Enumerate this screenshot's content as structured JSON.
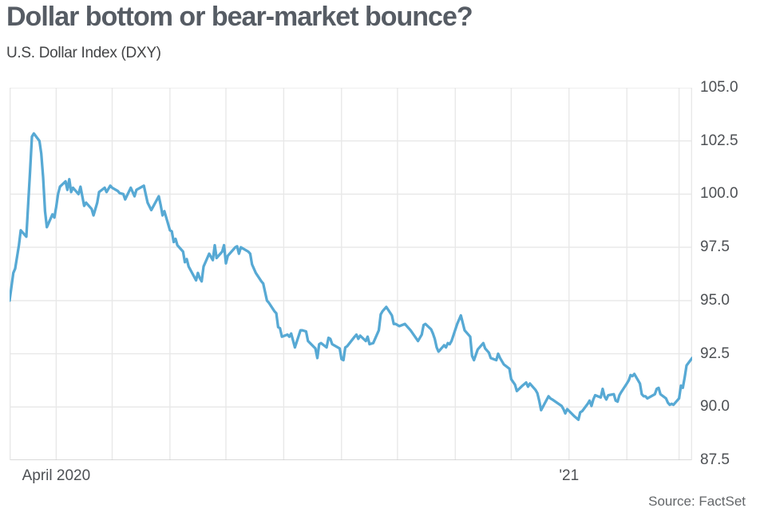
{
  "header": {
    "title": "Dollar bottom or bear-market bounce?",
    "subtitle": "U.S. Dollar Index (DXY)"
  },
  "footer": {
    "source": "Source: FactSet"
  },
  "colors": {
    "title": "#565c64",
    "subtitle": "#434446",
    "axis_text": "#4d5054",
    "grid": "#e8e8e8",
    "axis_bottom": "#cdcdcd",
    "line": "#57a9d4"
  },
  "chart_data": {
    "type": "line",
    "title": "Dollar bottom or bear-market bounce?",
    "subtitle": "U.S. Dollar Index (DXY)",
    "source": "Source: FactSet",
    "x_domain": [
      "2020-03-07",
      "2021-03-08"
    ],
    "ylim": [
      87.5,
      105.0
    ],
    "y_ticks": [
      105.0,
      102.5,
      100.0,
      97.5,
      95.0,
      92.5,
      90.0,
      87.5
    ],
    "y_tick_labels": [
      "105.0",
      "102.5",
      "100.0",
      "97.5",
      "95.0",
      "92.5",
      "90.0",
      "87.5"
    ],
    "x_ticks": [
      {
        "label": "April 2020",
        "date": "2020-04-01"
      },
      {
        "label": "'21",
        "date": "2021-01-01"
      }
    ],
    "grid": {
      "vertical": "month-starts",
      "horizontal_step": 2.5,
      "legend": "none"
    },
    "series": [
      {
        "name": "U.S. Dollar Index (DXY)",
        "color": "#57a9d4",
        "points": [
          [
            "2020-03-07",
            95.0
          ],
          [
            "2020-03-09",
            96.3
          ],
          [
            "2020-03-10",
            96.5
          ],
          [
            "2020-03-12",
            97.6
          ],
          [
            "2020-03-13",
            98.3
          ],
          [
            "2020-03-16",
            98.0
          ],
          [
            "2020-03-17",
            99.6
          ],
          [
            "2020-03-18",
            101.1
          ],
          [
            "2020-03-19",
            102.7
          ],
          [
            "2020-03-20",
            102.85
          ],
          [
            "2020-03-23",
            102.5
          ],
          [
            "2020-03-24",
            101.9
          ],
          [
            "2020-03-25",
            100.8
          ],
          [
            "2020-03-26",
            99.2
          ],
          [
            "2020-03-27",
            98.45
          ],
          [
            "2020-03-30",
            99.05
          ],
          [
            "2020-03-31",
            98.9
          ],
          [
            "2020-04-01",
            99.4
          ],
          [
            "2020-04-02",
            100.0
          ],
          [
            "2020-04-03",
            100.35
          ],
          [
            "2020-04-06",
            100.6
          ],
          [
            "2020-04-07",
            100.2
          ],
          [
            "2020-04-08",
            100.7
          ],
          [
            "2020-04-09",
            100.1
          ],
          [
            "2020-04-10",
            100.3
          ],
          [
            "2020-04-13",
            100.0
          ],
          [
            "2020-04-14",
            100.35
          ],
          [
            "2020-04-16",
            99.45
          ],
          [
            "2020-04-17",
            99.6
          ],
          [
            "2020-04-20",
            99.3
          ],
          [
            "2020-04-21",
            99.0
          ],
          [
            "2020-04-23",
            99.6
          ],
          [
            "2020-04-24",
            100.1
          ],
          [
            "2020-04-27",
            100.3
          ],
          [
            "2020-04-28",
            100.1
          ],
          [
            "2020-04-30",
            100.4
          ],
          [
            "2020-05-01",
            100.3
          ],
          [
            "2020-05-04",
            100.15
          ],
          [
            "2020-05-05",
            100.05
          ],
          [
            "2020-05-07",
            100.0
          ],
          [
            "2020-05-08",
            99.75
          ],
          [
            "2020-05-11",
            100.3
          ],
          [
            "2020-05-13",
            99.9
          ],
          [
            "2020-05-14",
            100.2
          ],
          [
            "2020-05-18",
            100.4
          ],
          [
            "2020-05-19",
            100.0
          ],
          [
            "2020-05-20",
            99.6
          ],
          [
            "2020-05-22",
            99.25
          ],
          [
            "2020-05-26",
            99.9
          ],
          [
            "2020-05-27",
            99.5
          ],
          [
            "2020-05-28",
            99.0
          ],
          [
            "2020-05-29",
            99.2
          ],
          [
            "2020-06-01",
            98.3
          ],
          [
            "2020-06-02",
            98.25
          ],
          [
            "2020-06-03",
            97.75
          ],
          [
            "2020-06-04",
            97.9
          ],
          [
            "2020-06-05",
            97.6
          ],
          [
            "2020-06-08",
            97.3
          ],
          [
            "2020-06-09",
            96.8
          ],
          [
            "2020-06-10",
            96.95
          ],
          [
            "2020-06-11",
            96.6
          ],
          [
            "2020-06-15",
            95.95
          ],
          [
            "2020-06-16",
            96.3
          ],
          [
            "2020-06-17",
            96.05
          ],
          [
            "2020-06-18",
            95.9
          ],
          [
            "2020-06-19",
            96.6
          ],
          [
            "2020-06-22",
            97.2
          ],
          [
            "2020-06-24",
            96.9
          ],
          [
            "2020-06-25",
            97.6
          ],
          [
            "2020-06-26",
            97.0
          ],
          [
            "2020-06-29",
            97.3
          ],
          [
            "2020-06-30",
            97.6
          ],
          [
            "2020-07-01",
            96.75
          ],
          [
            "2020-07-02",
            97.1
          ],
          [
            "2020-07-06",
            97.5
          ],
          [
            "2020-07-07",
            97.55
          ],
          [
            "2020-07-08",
            97.2
          ],
          [
            "2020-07-09",
            97.5
          ],
          [
            "2020-07-13",
            97.3
          ],
          [
            "2020-07-14",
            97.2
          ],
          [
            "2020-07-15",
            96.7
          ],
          [
            "2020-07-17",
            96.3
          ],
          [
            "2020-07-20",
            95.9
          ],
          [
            "2020-07-21",
            95.8
          ],
          [
            "2020-07-23",
            95.0
          ],
          [
            "2020-07-24",
            94.9
          ],
          [
            "2020-07-27",
            94.5
          ],
          [
            "2020-07-28",
            94.4
          ],
          [
            "2020-07-29",
            93.75
          ],
          [
            "2020-07-30",
            93.7
          ],
          [
            "2020-07-31",
            93.3
          ],
          [
            "2020-08-03",
            93.4
          ],
          [
            "2020-08-04",
            93.3
          ],
          [
            "2020-08-05",
            93.45
          ],
          [
            "2020-08-07",
            92.8
          ],
          [
            "2020-08-10",
            93.6
          ],
          [
            "2020-08-11",
            93.6
          ],
          [
            "2020-08-13",
            93.55
          ],
          [
            "2020-08-14",
            93.1
          ],
          [
            "2020-08-18",
            92.75
          ],
          [
            "2020-08-19",
            92.3
          ],
          [
            "2020-08-20",
            92.95
          ],
          [
            "2020-08-21",
            93.0
          ],
          [
            "2020-08-24",
            92.8
          ],
          [
            "2020-08-25",
            93.25
          ],
          [
            "2020-08-26",
            93.2
          ],
          [
            "2020-08-27",
            92.95
          ],
          [
            "2020-08-28",
            92.9
          ],
          [
            "2020-08-31",
            92.75
          ],
          [
            "2020-09-01",
            92.25
          ],
          [
            "2020-09-02",
            92.2
          ],
          [
            "2020-09-03",
            92.8
          ],
          [
            "2020-09-04",
            92.85
          ],
          [
            "2020-09-08",
            93.3
          ],
          [
            "2020-09-09",
            93.4
          ],
          [
            "2020-09-10",
            93.2
          ],
          [
            "2020-09-11",
            93.35
          ],
          [
            "2020-09-14",
            93.1
          ],
          [
            "2020-09-15",
            93.3
          ],
          [
            "2020-09-16",
            92.95
          ],
          [
            "2020-09-18",
            93.0
          ],
          [
            "2020-09-21",
            93.6
          ],
          [
            "2020-09-22",
            94.35
          ],
          [
            "2020-09-23",
            94.5
          ],
          [
            "2020-09-25",
            94.7
          ],
          [
            "2020-09-28",
            94.3
          ],
          [
            "2020-09-29",
            93.9
          ],
          [
            "2020-09-30",
            93.9
          ],
          [
            "2020-10-02",
            93.8
          ],
          [
            "2020-10-05",
            93.9
          ],
          [
            "2020-10-07",
            93.7
          ],
          [
            "2020-10-08",
            93.6
          ],
          [
            "2020-10-12",
            93.1
          ],
          [
            "2020-10-14",
            93.4
          ],
          [
            "2020-10-15",
            93.85
          ],
          [
            "2020-10-16",
            93.9
          ],
          [
            "2020-10-19",
            93.65
          ],
          [
            "2020-10-20",
            93.45
          ],
          [
            "2020-10-21",
            93.2
          ],
          [
            "2020-10-22",
            92.8
          ],
          [
            "2020-10-23",
            92.6
          ],
          [
            "2020-10-26",
            92.9
          ],
          [
            "2020-10-27",
            92.8
          ],
          [
            "2020-10-28",
            93.0
          ],
          [
            "2020-10-29",
            92.95
          ],
          [
            "2020-10-30",
            93.1
          ],
          [
            "2020-11-02",
            93.9
          ],
          [
            "2020-11-03",
            94.1
          ],
          [
            "2020-11-04",
            94.3
          ],
          [
            "2020-11-06",
            93.6
          ],
          [
            "2020-11-09",
            93.3
          ],
          [
            "2020-11-10",
            92.4
          ],
          [
            "2020-11-11",
            92.2
          ],
          [
            "2020-11-13",
            92.7
          ],
          [
            "2020-11-16",
            93.0
          ],
          [
            "2020-11-17",
            92.75
          ],
          [
            "2020-11-19",
            92.55
          ],
          [
            "2020-11-20",
            92.3
          ],
          [
            "2020-11-23",
            92.2
          ],
          [
            "2020-11-24",
            92.5
          ],
          [
            "2020-11-25",
            92.3
          ],
          [
            "2020-11-27",
            92.0
          ],
          [
            "2020-11-30",
            91.8
          ],
          [
            "2020-12-01",
            91.3
          ],
          [
            "2020-12-03",
            91.05
          ],
          [
            "2020-12-04",
            90.75
          ],
          [
            "2020-12-07",
            91.0
          ],
          [
            "2020-12-09",
            91.15
          ],
          [
            "2020-12-10",
            90.95
          ],
          [
            "2020-12-11",
            91.1
          ],
          [
            "2020-12-14",
            90.8
          ],
          [
            "2020-12-15",
            90.65
          ],
          [
            "2020-12-16",
            90.3
          ],
          [
            "2020-12-17",
            89.85
          ],
          [
            "2020-12-21",
            90.5
          ],
          [
            "2020-12-22",
            90.4
          ],
          [
            "2020-12-23",
            90.35
          ],
          [
            "2020-12-28",
            90.05
          ],
          [
            "2020-12-29",
            89.9
          ],
          [
            "2020-12-30",
            89.7
          ],
          [
            "2020-12-31",
            89.9
          ],
          [
            "2021-01-04",
            89.55
          ],
          [
            "2021-01-06",
            89.4
          ],
          [
            "2021-01-07",
            89.75
          ],
          [
            "2021-01-08",
            89.8
          ],
          [
            "2021-01-11",
            90.15
          ],
          [
            "2021-01-12",
            90.3
          ],
          [
            "2021-01-13",
            90.05
          ],
          [
            "2021-01-14",
            90.35
          ],
          [
            "2021-01-15",
            90.55
          ],
          [
            "2021-01-18",
            90.45
          ],
          [
            "2021-01-19",
            90.85
          ],
          [
            "2021-01-20",
            90.5
          ],
          [
            "2021-01-21",
            90.35
          ],
          [
            "2021-01-22",
            90.55
          ],
          [
            "2021-01-25",
            90.6
          ],
          [
            "2021-01-26",
            90.3
          ],
          [
            "2021-01-27",
            90.25
          ],
          [
            "2021-01-28",
            90.55
          ],
          [
            "2021-01-29",
            90.7
          ],
          [
            "2021-02-01",
            91.1
          ],
          [
            "2021-02-02",
            91.25
          ],
          [
            "2021-02-03",
            91.5
          ],
          [
            "2021-02-04",
            91.45
          ],
          [
            "2021-02-05",
            91.55
          ],
          [
            "2021-02-08",
            91.1
          ],
          [
            "2021-02-09",
            90.6
          ],
          [
            "2021-02-10",
            90.5
          ],
          [
            "2021-02-11",
            90.5
          ],
          [
            "2021-02-12",
            90.4
          ],
          [
            "2021-02-16",
            90.6
          ],
          [
            "2021-02-17",
            90.85
          ],
          [
            "2021-02-18",
            90.9
          ],
          [
            "2021-02-19",
            90.6
          ],
          [
            "2021-02-22",
            90.4
          ],
          [
            "2021-02-23",
            90.2
          ],
          [
            "2021-02-24",
            90.1
          ],
          [
            "2021-02-25",
            90.15
          ],
          [
            "2021-02-26",
            90.1
          ],
          [
            "2021-03-01",
            90.4
          ],
          [
            "2021-03-02",
            91.0
          ],
          [
            "2021-03-03",
            90.9
          ],
          [
            "2021-03-04",
            91.4
          ],
          [
            "2021-03-05",
            91.95
          ],
          [
            "2021-03-08",
            92.3
          ]
        ]
      }
    ]
  }
}
